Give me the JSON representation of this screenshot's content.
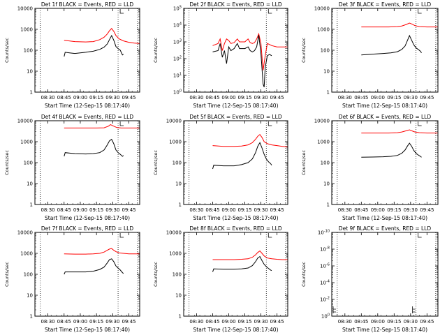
{
  "chart_data": [
    {
      "type": "line",
      "title": "Det 1f BLACK = Events, RED = LLD",
      "xlabel": "Start Time (12-Sep-15 08:17:40)",
      "ylabel": "Counts/sec",
      "yscale": "log",
      "ylim": [
        1,
        10000
      ],
      "yticks": [
        "1",
        "10",
        "100",
        "1000",
        "10000"
      ],
      "xticks": [
        "08:30",
        "08:45",
        "09:00",
        "09:15",
        "09:30",
        "09:45"
      ],
      "xlim": [
        "08:18",
        "09:55"
      ],
      "vlines": [
        "08:23",
        "09:35",
        "09:53"
      ],
      "series": [
        {
          "color": "#ff0000",
          "x": [
            "08:45",
            "08:55",
            "09:05",
            "09:12",
            "09:18",
            "09:22",
            "09:25",
            "09:27",
            "09:29",
            "09:31",
            "09:33",
            "09:36",
            "09:40",
            "09:45",
            "09:50",
            "09:55"
          ],
          "y": [
            300,
            260,
            250,
            260,
            320,
            420,
            600,
            850,
            1100,
            800,
            500,
            350,
            280,
            240,
            220,
            210
          ]
        },
        {
          "color": "#000000",
          "x": [
            "08:45",
            "08:46",
            "08:50",
            "08:55",
            "09:05",
            "09:12",
            "09:18",
            "09:22",
            "09:25",
            "09:27",
            "09:29",
            "09:31",
            "09:33",
            "09:35",
            "09:36",
            "09:37",
            "09:39",
            "09:40"
          ],
          "y": [
            50,
            80,
            75,
            70,
            80,
            90,
            110,
            140,
            200,
            320,
            500,
            300,
            150,
            120,
            110,
            100,
            60,
            65
          ]
        }
      ]
    },
    {
      "type": "line",
      "title": "Det 2f BLACK = Events, RED = LLD",
      "xlabel": "Start Time (12-Sep-15 08:17:40)",
      "ylabel": "Counts/sec",
      "yscale": "log",
      "ylim": [
        1,
        100000
      ],
      "yticks": [
        "10^0",
        "10^1",
        "10^2",
        "10^3",
        "10^4",
        "10^5"
      ],
      "xticks": [
        "08:30",
        "08:45",
        "09:00",
        "09:15",
        "09:30",
        "09:45"
      ],
      "xlim": [
        "08:18",
        "09:55"
      ],
      "vlines": [
        "08:23",
        "09:35",
        "09:53"
      ],
      "series": [
        {
          "color": "#ff0000",
          "x": [
            "08:45",
            "08:50",
            "08:52",
            "08:54",
            "08:56",
            "08:58",
            "09:00",
            "09:02",
            "09:05",
            "09:08",
            "09:10",
            "09:12",
            "09:15",
            "09:18",
            "09:20",
            "09:22",
            "09:24",
            "09:26",
            "09:28",
            "09:30",
            "09:32",
            "09:34",
            "09:36",
            "09:40",
            "09:45",
            "09:50",
            "09:55"
          ],
          "y": [
            600,
            800,
            1500,
            300,
            800,
            1500,
            1200,
            800,
            900,
            1500,
            1000,
            1000,
            1000,
            1500,
            900,
            800,
            900,
            1500,
            3000,
            800,
            20,
            150,
            800,
            600,
            500,
            500,
            500
          ]
        },
        {
          "color": "#000000",
          "x": [
            "08:45",
            "08:50",
            "08:52",
            "08:54",
            "08:56",
            "08:58",
            "09:00",
            "09:02",
            "09:05",
            "09:08",
            "09:10",
            "09:12",
            "09:15",
            "09:18",
            "09:20",
            "09:22",
            "09:24",
            "09:26",
            "09:28",
            "09:30",
            "09:32",
            "09:33",
            "09:34",
            "09:36",
            "09:38",
            "09:40"
          ],
          "y": [
            250,
            300,
            800,
            120,
            300,
            50,
            500,
            300,
            400,
            800,
            400,
            400,
            400,
            500,
            300,
            250,
            300,
            500,
            2500,
            200,
            3,
            2,
            30,
            150,
            180,
            150
          ]
        }
      ]
    },
    {
      "type": "line",
      "title": "Det 3f BLACK = Events, RED = LLD",
      "xlabel": "Start Time (12-Sep-15 08:17:40)",
      "ylabel": "Counts/sec",
      "yscale": "log",
      "ylim": [
        1,
        10000
      ],
      "yticks": [
        "1",
        "10",
        "100",
        "1000",
        "10000"
      ],
      "xticks": [
        "08:30",
        "08:45",
        "09:00",
        "09:15",
        "09:30",
        "09:45"
      ],
      "xlim": [
        "08:18",
        "09:55"
      ],
      "vlines": [
        "08:23",
        "09:35",
        "09:53"
      ],
      "series": [
        {
          "color": "#ff0000",
          "x": [
            "08:45",
            "09:00",
            "09:10",
            "09:18",
            "09:22",
            "09:26",
            "09:29",
            "09:31",
            "09:34",
            "09:38",
            "09:45",
            "09:55"
          ],
          "y": [
            1300,
            1300,
            1300,
            1350,
            1450,
            1700,
            2000,
            1800,
            1500,
            1350,
            1300,
            1300
          ]
        },
        {
          "color": "#000000",
          "x": [
            "08:45",
            "08:55",
            "09:05",
            "09:12",
            "09:18",
            "09:22",
            "09:25",
            "09:27",
            "09:29",
            "09:31",
            "09:33",
            "09:35",
            "09:37",
            "09:39",
            "09:40"
          ],
          "y": [
            60,
            65,
            70,
            75,
            85,
            110,
            160,
            280,
            500,
            300,
            180,
            130,
            110,
            90,
            75
          ]
        }
      ]
    },
    {
      "type": "line",
      "title": "Det 4f BLACK = Events, RED = LLD",
      "xlabel": "Start Time (12-Sep-15 08:17:40)",
      "ylabel": "Counts/sec",
      "yscale": "log",
      "ylim": [
        1,
        10000
      ],
      "yticks": [
        "1",
        "10",
        "100",
        "1000",
        "10000"
      ],
      "xticks": [
        "08:30",
        "08:45",
        "09:00",
        "09:15",
        "09:30",
        "09:45"
      ],
      "xlim": [
        "08:18",
        "09:55"
      ],
      "vlines": [
        "08:23",
        "09:35",
        "09:53"
      ],
      "series": [
        {
          "color": "#ff0000",
          "x": [
            "08:45",
            "09:00",
            "09:15",
            "09:22",
            "09:26",
            "09:28",
            "09:31",
            "09:34",
            "09:38",
            "09:45",
            "09:55"
          ],
          "y": [
            4500,
            4500,
            4500,
            4600,
            5500,
            6500,
            5500,
            4700,
            4500,
            4500,
            4500
          ]
        },
        {
          "color": "#000000",
          "x": [
            "08:45",
            "08:46",
            "08:55",
            "09:05",
            "09:12",
            "09:18",
            "09:22",
            "09:25",
            "09:27",
            "09:29",
            "09:31",
            "09:33",
            "09:35",
            "09:37",
            "09:39",
            "09:40"
          ],
          "y": [
            200,
            300,
            270,
            260,
            270,
            300,
            400,
            700,
            1100,
            1300,
            800,
            400,
            300,
            250,
            200,
            220
          ]
        }
      ]
    },
    {
      "type": "line",
      "title": "Det 5f BLACK = Events, RED = LLD",
      "xlabel": "Start Time (12-Sep-15 08:17:40)",
      "ylabel": "Counts/sec",
      "yscale": "log",
      "ylim": [
        1,
        10000
      ],
      "yticks": [
        "1",
        "10",
        "100",
        "1000",
        "10000"
      ],
      "xticks": [
        "08:30",
        "08:45",
        "09:00",
        "09:15",
        "09:30",
        "09:45"
      ],
      "xlim": [
        "08:18",
        "09:55"
      ],
      "vlines": [
        "08:23",
        "09:35",
        "09:53"
      ],
      "series": [
        {
          "color": "#ff0000",
          "x": [
            "08:45",
            "08:55",
            "09:05",
            "09:12",
            "09:18",
            "09:22",
            "09:25",
            "09:27",
            "09:29",
            "09:31",
            "09:33",
            "09:36",
            "09:40",
            "09:45",
            "09:50",
            "09:55"
          ],
          "y": [
            650,
            600,
            600,
            620,
            700,
            900,
            1300,
            1800,
            2200,
            1600,
            1000,
            800,
            700,
            650,
            600,
            550
          ]
        },
        {
          "color": "#000000",
          "x": [
            "08:45",
            "08:46",
            "08:55",
            "09:05",
            "09:12",
            "09:18",
            "09:22",
            "09:25",
            "09:27",
            "09:29",
            "09:31",
            "09:33",
            "09:35",
            "09:37",
            "09:39",
            "09:40"
          ],
          "y": [
            50,
            75,
            70,
            70,
            80,
            100,
            150,
            300,
            600,
            900,
            500,
            250,
            150,
            110,
            90,
            75
          ]
        }
      ]
    },
    {
      "type": "line",
      "title": "Det 6f BLACK = Events, RED = LLD",
      "xlabel": "Start Time (12-Sep-15 08:17:40)",
      "ylabel": "Counts/sec",
      "yscale": "log",
      "ylim": [
        1,
        10000
      ],
      "yticks": [
        "1",
        "10",
        "100",
        "1000",
        "10000"
      ],
      "xticks": [
        "08:30",
        "08:45",
        "09:00",
        "09:15",
        "09:30",
        "09:45"
      ],
      "xlim": [
        "08:18",
        "09:55"
      ],
      "vlines": [
        "08:23",
        "09:35",
        "09:53"
      ],
      "series": [
        {
          "color": "#ff0000",
          "x": [
            "08:45",
            "09:00",
            "09:10",
            "09:18",
            "09:22",
            "09:26",
            "09:29",
            "09:31",
            "09:34",
            "09:38",
            "09:45",
            "09:55"
          ],
          "y": [
            2600,
            2600,
            2600,
            2700,
            2900,
            3300,
            3700,
            3300,
            2900,
            2700,
            2600,
            2600
          ]
        },
        {
          "color": "#000000",
          "x": [
            "08:45",
            "08:55",
            "09:05",
            "09:12",
            "09:18",
            "09:22",
            "09:25",
            "09:27",
            "09:29",
            "09:31",
            "09:33",
            "09:35",
            "09:37",
            "09:39",
            "09:40"
          ],
          "y": [
            180,
            185,
            190,
            200,
            220,
            280,
            400,
            600,
            850,
            600,
            380,
            280,
            230,
            200,
            180
          ]
        }
      ]
    },
    {
      "type": "line",
      "title": "Det 7f BLACK = Events, RED = LLD",
      "xlabel": "Start Time (12-Sep-15 08:17:40)",
      "ylabel": "Counts/sec",
      "yscale": "log",
      "ylim": [
        1,
        10000
      ],
      "yticks": [
        "1",
        "10",
        "100",
        "1000",
        "10000"
      ],
      "xticks": [
        "08:30",
        "08:45",
        "09:00",
        "09:15",
        "09:30",
        "09:45"
      ],
      "xlim": [
        "08:18",
        "09:55"
      ],
      "vlines": [
        "08:23",
        "09:35",
        "09:53"
      ],
      "series": [
        {
          "color": "#ff0000",
          "x": [
            "08:45",
            "08:55",
            "09:05",
            "09:12",
            "09:18",
            "09:22",
            "09:25",
            "09:27",
            "09:29",
            "09:31",
            "09:33",
            "09:36",
            "09:40",
            "09:45",
            "09:50",
            "09:55"
          ],
          "y": [
            950,
            920,
            920,
            950,
            1000,
            1150,
            1400,
            1600,
            1700,
            1400,
            1200,
            1050,
            1000,
            950,
            950,
            950
          ]
        },
        {
          "color": "#000000",
          "x": [
            "08:45",
            "08:46",
            "08:55",
            "09:05",
            "09:12",
            "09:18",
            "09:22",
            "09:25",
            "09:27",
            "09:29",
            "09:31",
            "09:33",
            "09:35",
            "09:37",
            "09:39",
            "09:40"
          ],
          "y": [
            100,
            130,
            130,
            130,
            140,
            170,
            220,
            350,
            500,
            550,
            400,
            250,
            200,
            160,
            120,
            110
          ]
        }
      ]
    },
    {
      "type": "line",
      "title": "Det 8f BLACK = Events, RED = LLD",
      "xlabel": "Start Time (12-Sep-15 08:17:40)",
      "ylabel": "Counts/sec",
      "yscale": "log",
      "ylim": [
        1,
        10000
      ],
      "yticks": [
        "1",
        "10",
        "100",
        "1000",
        "10000"
      ],
      "xticks": [
        "08:30",
        "08:45",
        "09:00",
        "09:15",
        "09:30",
        "09:45"
      ],
      "xlim": [
        "08:18",
        "09:55"
      ],
      "vlines": [
        "08:23",
        "09:35",
        "09:53"
      ],
      "series": [
        {
          "color": "#ff0000",
          "x": [
            "08:45",
            "08:55",
            "09:05",
            "09:12",
            "09:18",
            "09:22",
            "09:25",
            "09:27",
            "09:29",
            "09:31",
            "09:33",
            "09:36",
            "09:40",
            "09:45",
            "09:50",
            "09:55"
          ],
          "y": [
            500,
            500,
            500,
            520,
            550,
            650,
            850,
            1100,
            1300,
            1000,
            750,
            600,
            550,
            520,
            500,
            500
          ]
        },
        {
          "color": "#000000",
          "x": [
            "08:45",
            "08:46",
            "08:55",
            "09:05",
            "09:12",
            "09:18",
            "09:22",
            "09:25",
            "09:27",
            "09:29",
            "09:31",
            "09:33",
            "09:35",
            "09:37",
            "09:39",
            "09:40"
          ],
          "y": [
            130,
            180,
            175,
            175,
            180,
            200,
            260,
            400,
            600,
            700,
            450,
            300,
            230,
            190,
            160,
            150
          ]
        }
      ]
    },
    {
      "type": "line",
      "title": "Det 9f BLACK = Events, RED = LLD",
      "xlabel": "Start Time (12-Sep-15 08:17:40)",
      "ylabel": "Counts/sec",
      "yscale": "log",
      "ylim": [
        1,
        1e-10
      ],
      "yticks": [
        "10^0",
        "10^-2",
        "10^-4",
        "10^-6",
        "10^-8",
        "10^-10"
      ],
      "xticks": [
        "08:30",
        "08:45",
        "09:00",
        "09:15",
        "09:30",
        "09:45"
      ],
      "xlim": [
        "08:18",
        "09:55"
      ],
      "vlines": [
        "08:23",
        "09:35",
        "09:53"
      ],
      "series": []
    }
  ]
}
